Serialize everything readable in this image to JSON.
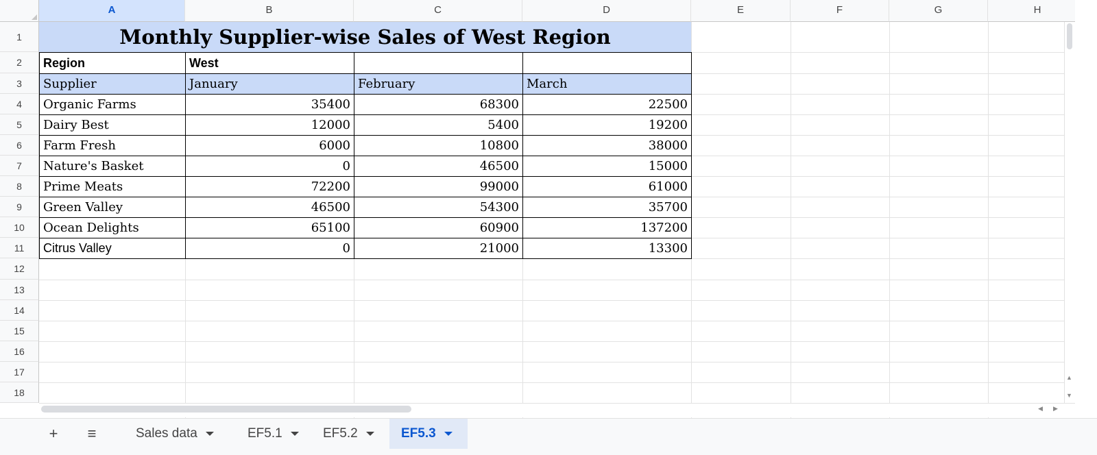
{
  "columns": [
    "A",
    "B",
    "C",
    "D",
    "E",
    "F",
    "G",
    "H"
  ],
  "selected_column": "A",
  "rows": [
    "1",
    "2",
    "3",
    "4",
    "5",
    "6",
    "7",
    "8",
    "9",
    "10",
    "11",
    "12",
    "13",
    "14",
    "15",
    "16",
    "17",
    "18"
  ],
  "sheet": {
    "title": "Monthly Supplier-wise Sales of West Region",
    "region_label": "Region",
    "region_value": "West",
    "headers": [
      "Supplier",
      "January",
      "February",
      "March"
    ],
    "data": [
      [
        "Organic Farms",
        "35400",
        "68300",
        "22500"
      ],
      [
        "Dairy Best",
        "12000",
        "5400",
        "19200"
      ],
      [
        "Farm Fresh",
        "6000",
        "10800",
        "38000"
      ],
      [
        "Nature's Basket",
        "0",
        "46500",
        "15000"
      ],
      [
        "Prime Meats",
        "72200",
        "99000",
        "61000"
      ],
      [
        "Green Valley",
        "46500",
        "54300",
        "35700"
      ],
      [
        "Ocean Delights",
        "65100",
        "60900",
        "137200"
      ],
      [
        "Citrus Valley",
        "0",
        "21000",
        "13300"
      ]
    ]
  },
  "tabs": {
    "add_icon": "+",
    "list_icon": "≡",
    "items": [
      {
        "label": "Sales data",
        "active": false
      },
      {
        "label": "EF5.1",
        "active": false
      },
      {
        "label": "EF5.2",
        "active": false
      },
      {
        "label": "EF5.3",
        "active": true
      }
    ]
  },
  "colors": {
    "accent": "#0b57d0",
    "header_fill": "#c9daf8",
    "selected_header": "#d3e3fd"
  }
}
